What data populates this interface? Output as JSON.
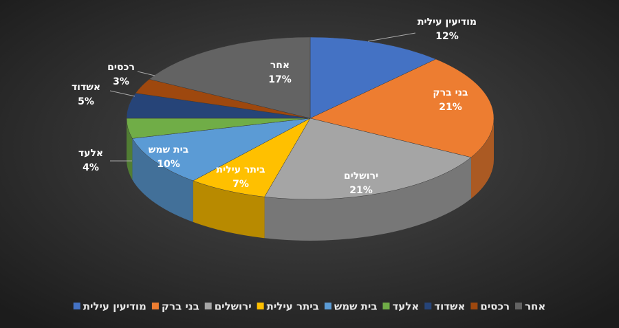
{
  "chart_data": {
    "type": "pie",
    "categories": [
      "מודיעין עילית",
      "בני ברק",
      "ירושלים",
      "ביתר עילית",
      "בית שמש",
      "אלעד",
      "אשדוד",
      "רכסים",
      "אחר"
    ],
    "values": [
      12,
      21,
      21,
      7,
      10,
      4,
      5,
      3,
      17
    ],
    "value_labels": [
      "12%",
      "21%",
      "21%",
      "7%",
      "10%",
      "4%",
      "5%",
      "3%",
      "17%"
    ],
    "colors": [
      "#4472c4",
      "#ed7d31",
      "#a5a5a5",
      "#ffc000",
      "#5b9bd5",
      "#70ad47",
      "#264478",
      "#9e480e",
      "#636363"
    ],
    "legend": "bottom"
  }
}
